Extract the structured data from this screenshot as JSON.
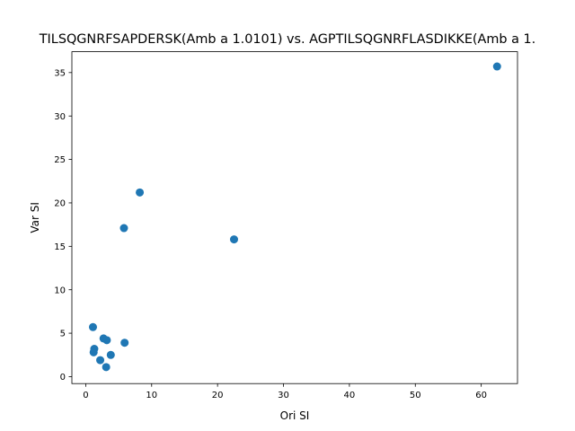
{
  "chart_data": {
    "type": "scatter",
    "title": "TILSQGNRFSAPDERSK(Amb a 1.0101) vs. AGPTILSQGNRFLASDIKKE(Amb a 1.",
    "xlabel": "Ori SI",
    "ylabel": "Var SI",
    "xlim": [
      -2.1,
      65.5
    ],
    "ylim": [
      -0.8,
      37.4
    ],
    "xticks": [
      0,
      10,
      20,
      30,
      40,
      50,
      60
    ],
    "yticks": [
      0,
      5,
      10,
      15,
      20,
      25,
      30,
      35
    ],
    "grid": false,
    "color": "#1f77b4",
    "points": [
      {
        "x": 62.4,
        "y": 35.7
      },
      {
        "x": 8.2,
        "y": 21.2
      },
      {
        "x": 5.8,
        "y": 17.1
      },
      {
        "x": 22.5,
        "y": 15.8
      },
      {
        "x": 1.1,
        "y": 5.7
      },
      {
        "x": 2.7,
        "y": 4.4
      },
      {
        "x": 3.2,
        "y": 4.2
      },
      {
        "x": 5.9,
        "y": 3.9
      },
      {
        "x": 1.3,
        "y": 3.2
      },
      {
        "x": 1.2,
        "y": 2.8
      },
      {
        "x": 3.8,
        "y": 2.5
      },
      {
        "x": 2.2,
        "y": 1.9
      },
      {
        "x": 3.1,
        "y": 1.1
      }
    ]
  }
}
